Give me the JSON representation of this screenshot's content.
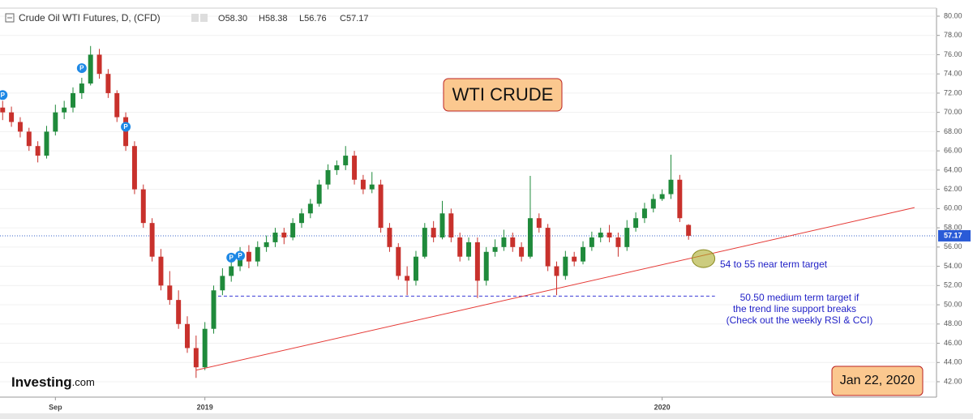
{
  "chart_data": {
    "type": "candlestick",
    "title": "Crude Oil WTI Futures, D, (CFD)",
    "header_ohlc": [
      {
        "label": "O",
        "value": "58.30"
      },
      {
        "label": "H",
        "value": "58.38"
      },
      {
        "label": "L",
        "value": "56.76"
      },
      {
        "label": "C",
        "value": "57.17"
      }
    ],
    "categories": [
      null,
      null,
      null,
      null,
      null,
      null,
      "Sep",
      null,
      null,
      null,
      null,
      null,
      null,
      null,
      null,
      null,
      null,
      null,
      null,
      null,
      null,
      null,
      null,
      "2019",
      null,
      null,
      null,
      null,
      null,
      null,
      null,
      null,
      null,
      null,
      null,
      null,
      null,
      null,
      null,
      null,
      null,
      null,
      null,
      null,
      null,
      null,
      null,
      null,
      null,
      null,
      null,
      null,
      null,
      null,
      null,
      null,
      null,
      null,
      null,
      null,
      null,
      null,
      null,
      null,
      null,
      null,
      null,
      null,
      null,
      null,
      null,
      null,
      null,
      null,
      null,
      "2020",
      null,
      null,
      null
    ],
    "ohlc": [
      [
        70.5,
        71.2,
        69.2,
        70
      ],
      [
        70,
        70.6,
        68.5,
        69
      ],
      [
        69,
        69.5,
        67.4,
        68
      ],
      [
        68,
        68.4,
        66,
        66.5
      ],
      [
        66.5,
        67,
        64.8,
        65.5
      ],
      [
        65.5,
        68.6,
        65.2,
        68
      ],
      [
        68,
        70.8,
        67.6,
        70
      ],
      [
        70,
        71.2,
        69.3,
        70.5
      ],
      [
        70.5,
        72.6,
        70,
        72
      ],
      [
        72,
        73.6,
        71.4,
        73
      ],
      [
        73,
        76.9,
        72.8,
        76
      ],
      [
        76,
        76.6,
        73.5,
        74
      ],
      [
        74,
        74.5,
        71.5,
        72
      ],
      [
        72,
        72.3,
        69,
        69.5
      ],
      [
        69.5,
        70,
        66,
        66.5
      ],
      [
        66.5,
        67,
        61.5,
        62
      ],
      [
        62,
        62.5,
        58,
        58.5
      ],
      [
        58.5,
        59,
        54.5,
        55
      ],
      [
        55,
        55.8,
        51.5,
        52
      ],
      [
        52,
        53.5,
        50,
        50.5
      ],
      [
        50.5,
        51.5,
        47.5,
        48
      ],
      [
        48,
        48.8,
        45,
        45.5
      ],
      [
        45.5,
        46.8,
        42.4,
        43.5
      ],
      [
        43.5,
        48.2,
        43.2,
        47.5
      ],
      [
        47.5,
        52,
        47,
        51.5
      ],
      [
        51.5,
        53.8,
        51,
        53
      ],
      [
        53,
        54.6,
        52.4,
        54
      ],
      [
        54,
        56,
        53.5,
        55.5
      ],
      [
        55.5,
        56.2,
        53.8,
        54.5
      ],
      [
        54.5,
        56.6,
        54,
        56
      ],
      [
        56,
        57.2,
        55.5,
        56.5
      ],
      [
        56.5,
        58,
        56,
        57.5
      ],
      [
        57.5,
        58,
        56.3,
        57
      ],
      [
        57,
        59,
        56.7,
        58.5
      ],
      [
        58.5,
        60,
        58,
        59.5
      ],
      [
        59.5,
        61,
        59,
        60.5
      ],
      [
        60.5,
        63,
        60.2,
        62.5
      ],
      [
        62.5,
        64.6,
        62,
        64
      ],
      [
        64,
        65,
        63.5,
        64.5
      ],
      [
        64.5,
        66.5,
        64,
        65.5
      ],
      [
        65.5,
        66,
        62.5,
        63
      ],
      [
        63,
        63.5,
        61.5,
        62
      ],
      [
        62,
        63.8,
        61.6,
        62.5
      ],
      [
        62.5,
        63,
        57.5,
        58
      ],
      [
        58,
        58.5,
        55.5,
        56
      ],
      [
        56,
        56.4,
        52.6,
        53
      ],
      [
        53,
        54,
        51,
        52.5
      ],
      [
        52.5,
        55.6,
        52,
        55
      ],
      [
        55,
        58.5,
        54.8,
        58
      ],
      [
        58,
        58.7,
        56.5,
        57
      ],
      [
        57,
        60.8,
        56.8,
        59.5
      ],
      [
        59.5,
        60,
        56.5,
        57
      ],
      [
        57,
        57.5,
        54.5,
        55
      ],
      [
        55,
        57,
        54.6,
        56.5
      ],
      [
        56.5,
        57,
        50.7,
        52.5
      ],
      [
        52.5,
        56,
        52,
        55.5
      ],
      [
        55.5,
        56.8,
        55,
        56
      ],
      [
        56,
        57.8,
        55.6,
        57
      ],
      [
        57,
        57.5,
        55.5,
        56
      ],
      [
        56,
        56.5,
        54.5,
        55
      ],
      [
        55,
        63.4,
        54.8,
        59
      ],
      [
        59,
        59.5,
        57.5,
        58
      ],
      [
        58,
        58.4,
        53.5,
        54
      ],
      [
        54,
        54.5,
        51,
        53
      ],
      [
        53,
        55.6,
        52.6,
        55
      ],
      [
        55,
        55.5,
        54,
        54.5
      ],
      [
        54.5,
        56.6,
        54.2,
        56
      ],
      [
        56,
        57.6,
        55.6,
        57
      ],
      [
        57,
        58,
        56.5,
        57.5
      ],
      [
        57.5,
        58.3,
        56.5,
        57
      ],
      [
        57,
        57.5,
        55,
        56
      ],
      [
        56,
        58.8,
        55.6,
        58
      ],
      [
        58,
        59.6,
        57.6,
        59
      ],
      [
        59,
        60.6,
        58.5,
        60
      ],
      [
        60,
        61.5,
        59.6,
        61
      ],
      [
        61,
        62,
        60.8,
        61.5
      ],
      [
        61.5,
        65.6,
        61,
        63
      ],
      [
        63,
        63.5,
        58.6,
        59
      ],
      [
        58.3,
        58.38,
        56.76,
        57.17
      ]
    ],
    "up_color": "#1f8a3b",
    "down_color": "#c8312c",
    "xlim": [
      -0.3,
      106.2
    ],
    "ylim": [
      40.4,
      80.84
    ],
    "yticks": [
      {
        "value": 42,
        "label": "42.00"
      },
      {
        "value": 44,
        "label": "44.00"
      },
      {
        "value": 46,
        "label": "46.00"
      },
      {
        "value": 48,
        "label": "48.00"
      },
      {
        "value": 50,
        "label": "50.00"
      },
      {
        "value": 52,
        "label": "52.00"
      },
      {
        "value": 54,
        "label": "54.00"
      },
      {
        "value": 56,
        "label": "56.00"
      },
      {
        "value": 58,
        "label": "58.00"
      },
      {
        "value": 60,
        "label": "60.00"
      },
      {
        "value": 62,
        "label": "62.00"
      },
      {
        "value": 64,
        "label": "64.00"
      },
      {
        "value": 66,
        "label": "66.00"
      },
      {
        "value": 68,
        "label": "68.00"
      },
      {
        "value": 70,
        "label": "70.00"
      },
      {
        "value": 72,
        "label": "72.00"
      },
      {
        "value": 74,
        "label": "74.00"
      },
      {
        "value": 76,
        "label": "76.00"
      },
      {
        "value": 78,
        "label": "78.00"
      },
      {
        "value": 80,
        "label": "80.00"
      }
    ],
    "current_price": 57.17,
    "pivots": [
      {
        "index": 0,
        "value": 71.8,
        "label": "P"
      },
      {
        "index": 9,
        "value": 74.6,
        "label": "P"
      },
      {
        "index": 14,
        "value": 68.5,
        "label": "P"
      },
      {
        "index": 26,
        "value": 54.9,
        "label": "P"
      },
      {
        "index": 27,
        "value": 55.1,
        "label": "P"
      }
    ],
    "trendline": {
      "from": [
        22,
        43.2
      ],
      "to": [
        103.7,
        60.1
      ],
      "color": "#e53935"
    },
    "support_line": {
      "from": 24.5,
      "to": 81,
      "value": 50.9,
      "color": "#3b3bd6"
    },
    "target_marker": {
      "index": 79.7,
      "value": 54.8
    },
    "annotations": {
      "title_box": "WTI CRUDE",
      "near_target": "54 to 55 near term target",
      "medium_target": [
        "50.50 medium term target if",
        "the trend line support breaks",
        "(Check out the weekly RSI & CCI)"
      ],
      "date_box": "Jan 22, 2020"
    },
    "logo": {
      "brand": "Investing",
      "suffix": ".com"
    }
  }
}
